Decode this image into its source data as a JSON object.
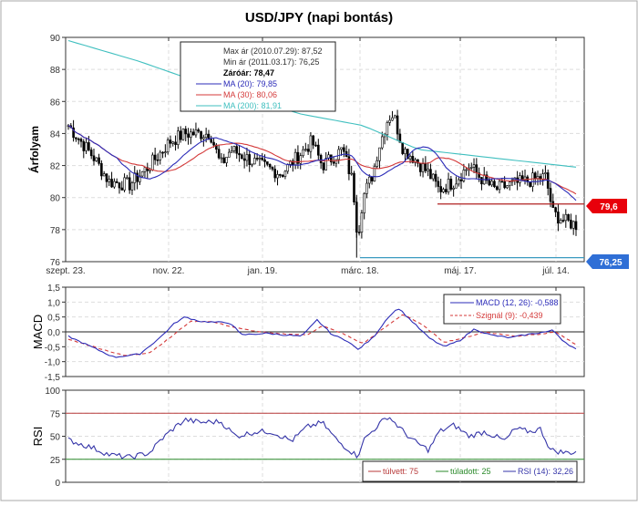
{
  "chart_data": [
    {
      "type": "candlestick",
      "title": "USD/JPY (napi bontás)",
      "ylabel": "Árfolyam",
      "ylim": [
        76,
        90
      ],
      "yticks": [
        "76",
        "78",
        "80",
        "82",
        "84",
        "86",
        "88",
        "90"
      ],
      "xticks": [
        "szept. 23.",
        "nov. 22.",
        "jan. 19.",
        "márc. 18.",
        "máj. 17.",
        "júl. 14."
      ],
      "legend": {
        "max": "Max ár (2010.07.29): 87,52",
        "min": "Min ár (2011.03.17): 76,25",
        "close": "Záróár: 78,47",
        "ma20": "MA (20): 79,85",
        "ma30": "MA (30): 80,06",
        "ma200": "MA (200): 81,91"
      },
      "levels": [
        {
          "label": "79,6",
          "value": 79.6,
          "color": "#e8000b"
        },
        {
          "label": "76,25",
          "value": 76.25,
          "color": "#2f6fd6"
        }
      ],
      "close_keypoints": [
        [
          0,
          84.5
        ],
        [
          0.05,
          82.5
        ],
        [
          0.08,
          81
        ],
        [
          0.12,
          80.8
        ],
        [
          0.16,
          82
        ],
        [
          0.2,
          83.5
        ],
        [
          0.23,
          84
        ],
        [
          0.28,
          84
        ],
        [
          0.3,
          82
        ],
        [
          0.32,
          83
        ],
        [
          0.35,
          82.5
        ],
        [
          0.38,
          82
        ],
        [
          0.42,
          81.5
        ],
        [
          0.45,
          82.5
        ],
        [
          0.48,
          83.5
        ],
        [
          0.5,
          82
        ],
        [
          0.54,
          83
        ],
        [
          0.56,
          81
        ],
        [
          0.57,
          77.5
        ],
        [
          0.58,
          80
        ],
        [
          0.6,
          81.5
        ],
        [
          0.61,
          83
        ],
        [
          0.63,
          85
        ],
        [
          0.64,
          85.2
        ],
        [
          0.66,
          83
        ],
        [
          0.68,
          82.5
        ],
        [
          0.71,
          81.5
        ],
        [
          0.73,
          80.5
        ],
        [
          0.76,
          81
        ],
        [
          0.79,
          82
        ],
        [
          0.81,
          81.3
        ],
        [
          0.84,
          80.5
        ],
        [
          0.87,
          80.8
        ],
        [
          0.9,
          81
        ],
        [
          0.94,
          81.3
        ],
        [
          0.955,
          79
        ],
        [
          0.98,
          78.5
        ],
        [
          1,
          78.3
        ]
      ],
      "ma200_keypoints": [
        [
          0,
          89.8
        ],
        [
          0.14,
          88.5
        ],
        [
          0.32,
          86.5
        ],
        [
          0.46,
          85.2
        ],
        [
          0.58,
          84.5
        ],
        [
          0.69,
          83
        ],
        [
          0.83,
          82.5
        ],
        [
          1,
          81.9
        ]
      ]
    },
    {
      "type": "line",
      "ylabel": "MACD",
      "ylim": [
        -1.5,
        1.5
      ],
      "yticks": [
        "1,5",
        "1,0",
        "0,5",
        "0,0",
        "-0,5",
        "-1,0",
        "-1,5"
      ],
      "legend": {
        "macd": "MACD (12, 26): -0,588",
        "signal": "Szignál (9): -0,439"
      },
      "macd_keypoints": [
        [
          0,
          -0.15
        ],
        [
          0.09,
          -0.85
        ],
        [
          0.14,
          -0.75
        ],
        [
          0.18,
          -0.2
        ],
        [
          0.21,
          0.3
        ],
        [
          0.23,
          0.5
        ],
        [
          0.26,
          0.35
        ],
        [
          0.32,
          0.3
        ],
        [
          0.34,
          -0.1
        ],
        [
          0.39,
          -0.05
        ],
        [
          0.46,
          -0.15
        ],
        [
          0.49,
          0.4
        ],
        [
          0.52,
          -0.1
        ],
        [
          0.55,
          -0.3
        ],
        [
          0.57,
          -0.6
        ],
        [
          0.6,
          -0.2
        ],
        [
          0.63,
          0.5
        ],
        [
          0.65,
          0.8
        ],
        [
          0.68,
          0.3
        ],
        [
          0.71,
          -0.2
        ],
        [
          0.74,
          -0.5
        ],
        [
          0.77,
          -0.3
        ],
        [
          0.8,
          0.1
        ],
        [
          0.83,
          -0.1
        ],
        [
          0.87,
          -0.2
        ],
        [
          0.9,
          -0.1
        ],
        [
          0.94,
          0.0
        ],
        [
          0.955,
          0.05
        ],
        [
          0.975,
          -0.3
        ],
        [
          1,
          -0.588
        ]
      ],
      "signal_keypoints": [
        [
          0,
          -0.25
        ],
        [
          0.11,
          -0.8
        ],
        [
          0.16,
          -0.7
        ],
        [
          0.2,
          -0.2
        ],
        [
          0.24,
          0.35
        ],
        [
          0.28,
          0.35
        ],
        [
          0.34,
          0.1
        ],
        [
          0.4,
          -0.05
        ],
        [
          0.47,
          -0.1
        ],
        [
          0.5,
          0.2
        ],
        [
          0.54,
          -0.05
        ],
        [
          0.58,
          -0.4
        ],
        [
          0.62,
          0.1
        ],
        [
          0.66,
          0.6
        ],
        [
          0.7,
          0.2
        ],
        [
          0.74,
          -0.35
        ],
        [
          0.78,
          -0.2
        ],
        [
          0.82,
          0.0
        ],
        [
          0.88,
          -0.15
        ],
        [
          0.94,
          -0.05
        ],
        [
          0.96,
          0.0
        ],
        [
          1,
          -0.439
        ]
      ]
    },
    {
      "type": "line",
      "ylabel": "RSI",
      "ylim": [
        0,
        100
      ],
      "yticks": [
        "100",
        "75",
        "50",
        "25",
        "0"
      ],
      "legend": {
        "overbought": "túlvett: 75",
        "oversold": "túladott: 25",
        "rsi": "RSI (14): 32,26"
      },
      "overbought": 75,
      "oversold": 25,
      "rsi_keypoints": [
        [
          0,
          46
        ],
        [
          0.05,
          37
        ],
        [
          0.08,
          30
        ],
        [
          0.12,
          27
        ],
        [
          0.16,
          32
        ],
        [
          0.18,
          45
        ],
        [
          0.21,
          60
        ],
        [
          0.23,
          68
        ],
        [
          0.26,
          65
        ],
        [
          0.3,
          66
        ],
        [
          0.33,
          50
        ],
        [
          0.37,
          55
        ],
        [
          0.4,
          55
        ],
        [
          0.44,
          45
        ],
        [
          0.47,
          60
        ],
        [
          0.5,
          65
        ],
        [
          0.53,
          45
        ],
        [
          0.57,
          28
        ],
        [
          0.58,
          45
        ],
        [
          0.61,
          62
        ],
        [
          0.63,
          72
        ],
        [
          0.66,
          55
        ],
        [
          0.68,
          45
        ],
        [
          0.71,
          35
        ],
        [
          0.73,
          55
        ],
        [
          0.76,
          62
        ],
        [
          0.79,
          50
        ],
        [
          0.82,
          55
        ],
        [
          0.86,
          45
        ],
        [
          0.88,
          58
        ],
        [
          0.91,
          55
        ],
        [
          0.93,
          58
        ],
        [
          0.95,
          35
        ],
        [
          0.98,
          32
        ],
        [
          1,
          33
        ]
      ]
    }
  ],
  "colors": {
    "ma20": "#2b2bb8",
    "ma30": "#d43a3a",
    "ma200": "#3fbfbf",
    "macd": "#2b2bb8",
    "signal": "#d43a3a",
    "rsi": "#3535a8",
    "overbought": "#b83a3a",
    "oversold": "#2a8a2a"
  }
}
